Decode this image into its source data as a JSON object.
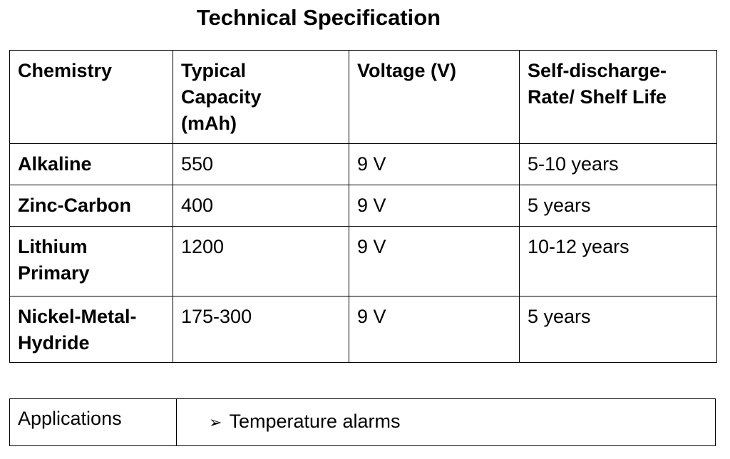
{
  "title": "Technical Specification",
  "table": {
    "header": [
      "Chemistry",
      "Typical\nCapacity\n(mAh)",
      "Voltage (V)",
      "Self-discharge-\nRate/ Shelf Life"
    ],
    "rows": [
      [
        "Alkaline",
        "550",
        "9 V",
        "5-10 years"
      ],
      [
        "Zinc-Carbon",
        "400",
        "9 V",
        "5 years"
      ],
      [
        "Lithium\nPrimary",
        "1200",
        "9 V",
        "10-12 years"
      ],
      [
        "Nickel-Metal-\nHydride",
        "175-300",
        "9 V",
        "5 years"
      ]
    ]
  },
  "applications": {
    "label": "Applications",
    "bullet": "➢",
    "item": "Temperature alarms"
  }
}
